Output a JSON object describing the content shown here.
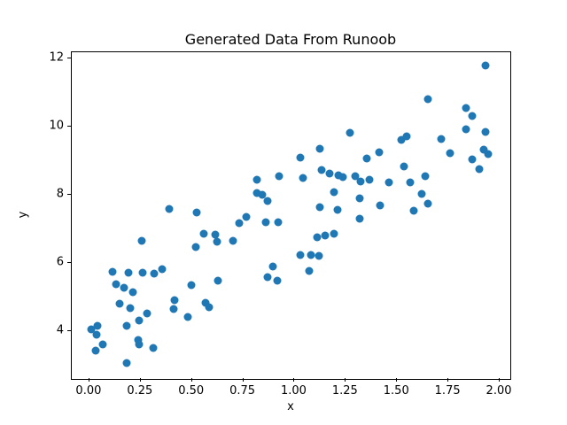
{
  "chart_data": {
    "type": "scatter",
    "title": "Generated Data From Runoob",
    "xlabel": "x",
    "ylabel": "y",
    "xlim": [
      -0.086,
      2.056
    ],
    "ylim": [
      2.59,
      12.19
    ],
    "grid": false,
    "legend": null,
    "marker_color": "#1f77b4",
    "xticks": [
      {
        "v": 0.0,
        "label": "0.00"
      },
      {
        "v": 0.25,
        "label": "0.25"
      },
      {
        "v": 0.5,
        "label": "0.50"
      },
      {
        "v": 0.75,
        "label": "0.75"
      },
      {
        "v": 1.0,
        "label": "1.00"
      },
      {
        "v": 1.25,
        "label": "1.25"
      },
      {
        "v": 1.5,
        "label": "1.50"
      },
      {
        "v": 1.75,
        "label": "1.75"
      },
      {
        "v": 2.0,
        "label": "2.00"
      }
    ],
    "yticks": [
      {
        "v": 4,
        "label": "4"
      },
      {
        "v": 6,
        "label": "6"
      },
      {
        "v": 8,
        "label": "8"
      },
      {
        "v": 10,
        "label": "10"
      },
      {
        "v": 12,
        "label": "12"
      }
    ],
    "points": [
      [
        0.013,
        4.03
      ],
      [
        0.043,
        4.13
      ],
      [
        0.039,
        3.87
      ],
      [
        0.069,
        3.58
      ],
      [
        0.035,
        3.4
      ],
      [
        0.117,
        5.71
      ],
      [
        0.134,
        5.35
      ],
      [
        0.173,
        5.25
      ],
      [
        0.216,
        5.12
      ],
      [
        0.151,
        4.78
      ],
      [
        0.194,
        5.69
      ],
      [
        0.203,
        4.65
      ],
      [
        0.186,
        4.13
      ],
      [
        0.186,
        3.04
      ],
      [
        0.242,
        3.71
      ],
      [
        0.246,
        3.58
      ],
      [
        0.264,
        5.69
      ],
      [
        0.259,
        6.62
      ],
      [
        0.246,
        4.29
      ],
      [
        0.285,
        4.49
      ],
      [
        0.315,
        3.48
      ],
      [
        0.32,
        5.66
      ],
      [
        0.359,
        5.79
      ],
      [
        0.393,
        7.55
      ],
      [
        0.419,
        4.88
      ],
      [
        0.415,
        4.62
      ],
      [
        0.484,
        4.39
      ],
      [
        0.502,
        5.33
      ],
      [
        0.527,
        7.45
      ],
      [
        0.523,
        6.44
      ],
      [
        0.562,
        6.83
      ],
      [
        0.57,
        4.81
      ],
      [
        0.587,
        4.68
      ],
      [
        0.618,
        6.81
      ],
      [
        0.626,
        6.6
      ],
      [
        0.631,
        5.45
      ],
      [
        0.704,
        6.62
      ],
      [
        0.734,
        7.14
      ],
      [
        0.769,
        7.31
      ],
      [
        0.821,
        8.42
      ],
      [
        0.821,
        8.03
      ],
      [
        0.847,
        7.97
      ],
      [
        0.873,
        7.79
      ],
      [
        0.864,
        7.17
      ],
      [
        0.924,
        7.17
      ],
      [
        0.873,
        5.56
      ],
      [
        0.92,
        5.45
      ],
      [
        0.898,
        5.87
      ],
      [
        0.929,
        8.52
      ],
      [
        1.045,
        8.47
      ],
      [
        1.032,
        9.06
      ],
      [
        1.032,
        6.21
      ],
      [
        1.084,
        6.21
      ],
      [
        1.123,
        6.18
      ],
      [
        1.076,
        5.74
      ],
      [
        1.128,
        9.32
      ],
      [
        1.136,
        8.7
      ],
      [
        1.175,
        8.6
      ],
      [
        1.114,
        6.73
      ],
      [
        1.153,
        6.78
      ],
      [
        1.197,
        6.83
      ],
      [
        1.197,
        8.05
      ],
      [
        1.214,
        7.53
      ],
      [
        1.128,
        7.61
      ],
      [
        1.218,
        8.55
      ],
      [
        1.24,
        8.49
      ],
      [
        1.274,
        9.79
      ],
      [
        1.3,
        8.52
      ],
      [
        1.326,
        8.36
      ],
      [
        1.322,
        7.86
      ],
      [
        1.322,
        7.27
      ],
      [
        1.356,
        9.04
      ],
      [
        1.369,
        8.42
      ],
      [
        1.417,
        9.22
      ],
      [
        1.421,
        7.66
      ],
      [
        1.464,
        8.34
      ],
      [
        1.525,
        9.58
      ],
      [
        1.551,
        9.69
      ],
      [
        1.538,
        8.81
      ],
      [
        1.568,
        8.34
      ],
      [
        1.585,
        7.51
      ],
      [
        1.624,
        8.0
      ],
      [
        1.642,
        8.52
      ],
      [
        1.654,
        7.71
      ],
      [
        1.654,
        10.78
      ],
      [
        1.719,
        9.61
      ],
      [
        1.762,
        9.19
      ],
      [
        1.84,
        10.52
      ],
      [
        1.84,
        9.9
      ],
      [
        1.87,
        10.29
      ],
      [
        1.87,
        9.01
      ],
      [
        1.905,
        8.73
      ],
      [
        1.926,
        9.3
      ],
      [
        1.948,
        9.17
      ],
      [
        1.935,
        11.77
      ],
      [
        1.935,
        9.82
      ]
    ]
  }
}
